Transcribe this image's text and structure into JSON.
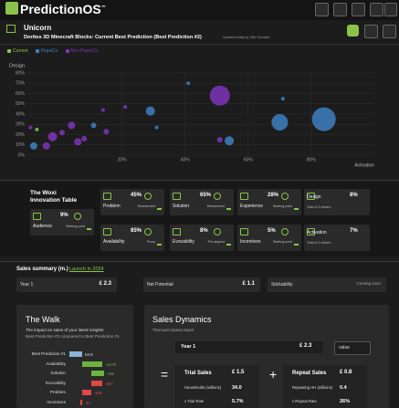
{
  "header": {
    "logo": "PredictionOS",
    "trademark": "™"
  },
  "breadcrumb": {
    "title": "Unicorn",
    "subtitle": "Doritos 3D Minecraft Blocks: Current Best Prediction (Best Prediction #2)",
    "updated": "Updated today by Ollie Goodwin"
  },
  "chart_data": {
    "type": "scatter",
    "x_label": "Activation",
    "y_label": "Design",
    "legend": "top-left",
    "grid": true,
    "xlim": [
      -10,
      100
    ],
    "ylim": [
      0,
      80
    ],
    "xticks": [
      {
        "value": 20,
        "label": "20%"
      },
      {
        "value": 40,
        "label": "40%"
      },
      {
        "value": 60,
        "label": "60%"
      },
      {
        "value": 80,
        "label": "80%"
      }
    ],
    "yticks": [
      {
        "value": 0,
        "label": "0%"
      },
      {
        "value": 10,
        "label": "10%"
      },
      {
        "value": 20,
        "label": "20%"
      },
      {
        "value": 30,
        "label": "30%"
      },
      {
        "value": 40,
        "label": "40%"
      },
      {
        "value": 50,
        "label": "50%"
      },
      {
        "value": 60,
        "label": "60%"
      },
      {
        "value": 70,
        "label": "70%"
      },
      {
        "value": 80,
        "label": "80%"
      }
    ],
    "series": [
      {
        "name": "Current",
        "color": "#8bc34a",
        "x": [
          -7
        ],
        "values": [
          25
        ],
        "sizes": [
          2
        ]
      },
      {
        "name": "PepsiCo",
        "color": "#3d7fc1",
        "x": [
          84,
          70,
          29,
          54,
          71,
          41,
          -8,
          11,
          31
        ],
        "values": [
          35,
          32,
          43,
          14,
          55,
          70,
          9,
          29,
          27
        ],
        "sizes": [
          13,
          9,
          5,
          5,
          2,
          2,
          4,
          3,
          2
        ]
      },
      {
        "name": "Non PepsiCo",
        "color": "#7e35b8",
        "x": [
          51,
          51,
          4,
          -2,
          -4,
          6,
          15,
          14,
          21,
          -9,
          1,
          8
        ],
        "values": [
          58,
          15,
          29,
          18,
          9,
          13,
          23,
          44,
          47,
          27,
          22,
          16
        ],
        "sizes": [
          11,
          3,
          4,
          5,
          4,
          4,
          3,
          2,
          2,
          2,
          3,
          3
        ]
      }
    ]
  },
  "innovation": {
    "title": "The Woxi Innovation Table",
    "audience": {
      "label": "Audience",
      "value": "9%",
      "status": "Starting point"
    },
    "cards": [
      {
        "label": "Problem",
        "value": "45%",
        "status": "Researched"
      },
      {
        "label": "Solution",
        "value": "65%",
        "status": "Researched"
      },
      {
        "label": "Experience",
        "value": "28%",
        "status": "Starting point"
      },
      {
        "label": "Availability",
        "value": "85%",
        "status": "Proxy"
      },
      {
        "label": "Evocability",
        "value": "8%",
        "status": "Pre-aligned"
      },
      {
        "label": "Incentives",
        "value": "5%",
        "status": "Starting point"
      }
    ],
    "totals": [
      {
        "label": "Design",
        "value": "8%",
        "status": "Total of 3 drivers"
      },
      {
        "label": "Activation",
        "value": "7%",
        "status": "Total of 3 drivers"
      }
    ]
  },
  "sales_summary": {
    "title": "Sales summary (m.)",
    "link": "Launch in 2024",
    "items": [
      {
        "label": "Year 1",
        "value": "£ 2.3"
      },
      {
        "label": "Net Potential",
        "value": "£ 1.1"
      },
      {
        "label": "Stickability",
        "value": "Coming soon"
      }
    ]
  },
  "walk": {
    "title": "The Walk",
    "subtitle": "The impact on sales of your latest insights",
    "compare": "Best Prediction #2 compared to Best Prediction #1",
    "rows": [
      {
        "label": "Best Prediction #1",
        "value": "£0.8"
      },
      {
        "label": "Availability",
        "value": "+£17k"
      },
      {
        "label": "Solution",
        "value": "+£8"
      },
      {
        "label": "Evocability",
        "value": "-£67"
      },
      {
        "label": "Problem",
        "value": "-£45"
      },
      {
        "label": "Incentives",
        "value": "-£1"
      }
    ]
  },
  "dynamics": {
    "title": "Sales Dynamics",
    "subtitle": "Trial and repeat report",
    "period": "Year 1",
    "period_value": "£ 2.3",
    "select": "value",
    "equals": "=",
    "plus": "+",
    "trial": {
      "title": "Trial Sales",
      "value": "£ 1.5",
      "rows": [
        {
          "label": "Households (millions)",
          "value": "34.0"
        },
        {
          "label": "x Trial Rate",
          "value": "5.7%"
        }
      ]
    },
    "repeat": {
      "title": "Repeat Sales",
      "value": "£ 0.8",
      "rows": [
        {
          "label": "Repeating HH (millions)",
          "value": "0.4"
        },
        {
          "label": "x Repeat Rate",
          "value": "26%"
        }
      ]
    }
  }
}
